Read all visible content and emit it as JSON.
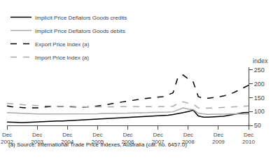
{
  "chart_data": {
    "type": "line",
    "categories": [
      "Dec\n2002",
      null,
      null,
      null,
      null,
      null,
      "Dec\n2003",
      null,
      null,
      null,
      null,
      null,
      "Dec\n2004",
      null,
      null,
      null,
      null,
      null,
      "Dec\n2005",
      null,
      null,
      null,
      null,
      null,
      "Dec\n2006",
      null,
      null,
      null,
      null,
      null,
      "Dec\n2007",
      null,
      null,
      null,
      null,
      null,
      "Dec\n2008",
      null,
      null,
      null,
      null,
      null,
      "Dec\n2009",
      null,
      null,
      null,
      null,
      null,
      "Dec\n2010"
    ],
    "series": [
      {
        "name": "Implicit Price Deflators Goods credits",
        "color": "#000000",
        "line_style": "solid",
        "values": [
          62,
          61,
          60,
          60,
          61,
          62,
          63,
          64,
          65,
          65,
          66,
          66,
          67,
          67,
          68,
          69,
          70,
          71,
          72,
          73,
          74,
          75,
          76,
          77,
          78,
          79,
          80,
          81,
          82,
          83,
          84,
          85,
          87,
          89,
          92,
          96,
          100,
          105,
          84,
          80,
          80,
          81,
          82,
          83,
          86,
          89,
          93,
          96,
          97
        ]
      },
      {
        "name": "Implicit Price Deflators Goods debits",
        "color": "#aaaaaa",
        "line_style": "solid",
        "values": [
          96,
          95,
          94,
          93,
          92,
          92,
          91,
          91,
          91,
          91,
          91,
          91,
          91,
          91,
          91,
          92,
          92,
          92,
          92,
          93,
          93,
          93,
          94,
          94,
          94,
          95,
          95,
          96,
          96,
          97,
          97,
          97,
          98,
          99,
          107,
          113,
          109,
          107,
          94,
          91,
          90,
          90,
          90,
          91,
          91,
          92,
          92,
          92,
          91
        ]
      },
      {
        "name": "Export Price Index (a)",
        "color": "#000000",
        "line_style": "dashed",
        "values": [
          120,
          117,
          116,
          114,
          113,
          113,
          113,
          116,
          118,
          119,
          119,
          119,
          118,
          117,
          116,
          116,
          117,
          118,
          120,
          122,
          126,
          129,
          132,
          135,
          138,
          141,
          143,
          146,
          148,
          150,
          152,
          154,
          160,
          168,
          226,
          232,
          218,
          207,
          154,
          148,
          148,
          150,
          153,
          156,
          162,
          168,
          177,
          187,
          195
        ]
      },
      {
        "name": "Import Price Index (a)",
        "color": "#aaaaaa",
        "line_style": "dashed",
        "values": [
          130,
          128,
          126,
          124,
          123,
          122,
          121,
          121,
          120,
          120,
          119,
          119,
          119,
          118,
          118,
          117,
          117,
          117,
          117,
          117,
          117,
          117,
          117,
          117,
          117,
          117,
          117,
          117,
          117,
          117,
          117,
          117,
          118,
          119,
          130,
          135,
          130,
          127,
          113,
          112,
          112,
          113,
          114,
          115,
          116,
          117,
          118,
          119,
          120
        ]
      }
    ],
    "ylabel": "index",
    "ylim": [
      50,
      260
    ],
    "yticks": [
      50,
      100,
      150,
      200,
      250
    ],
    "grid": false,
    "legend": "upper left",
    "annotations": [
      "(a) Source: International Trade Price Indexes, Australia (cat. no. 6457.0)"
    ]
  }
}
